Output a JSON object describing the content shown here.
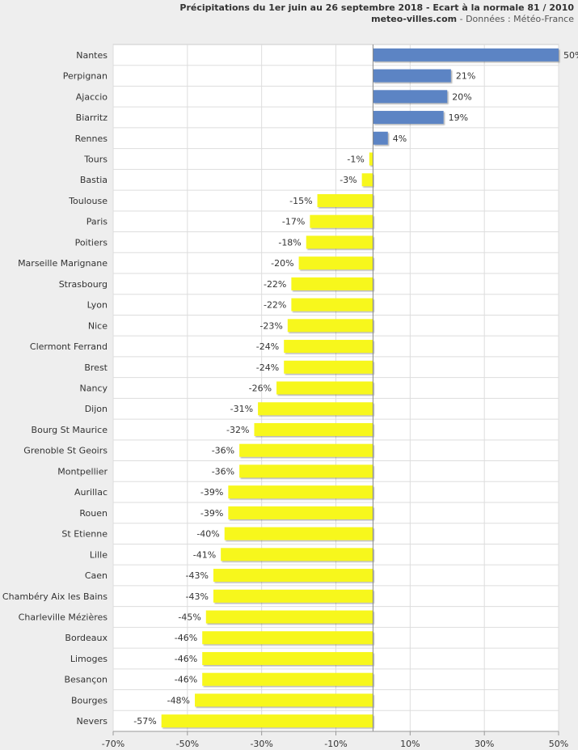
{
  "header": {
    "title": "Précipitations du 1er juin au 26 septembre 2018 - Ecart à la normale 81 / 2010",
    "site": "meteo-villes.com",
    "source": " - Données : Météo-France"
  },
  "colors": {
    "positive": "#5b84c4",
    "negative": "#f7f71c",
    "grid": "#dddddd",
    "plot_background": "#ffffff",
    "page_background": "#eeeeee"
  },
  "chart_data": {
    "type": "bar",
    "orientation": "horizontal",
    "title": "Précipitations du 1er juin au 26 septembre 2018 - Ecart à la normale 81 / 2010",
    "xlabel": "",
    "ylabel": "",
    "xlim": [
      -70,
      50
    ],
    "ticks": [
      "-70%",
      "-50%",
      "-30%",
      "-10%",
      "10%",
      "30%",
      "50%"
    ],
    "tick_values": [
      -70,
      -50,
      -30,
      -10,
      10,
      30,
      50
    ],
    "grid": true,
    "categories": [
      "Nantes",
      "Perpignan",
      "Ajaccio",
      "Biarritz",
      "Rennes",
      "Tours",
      "Bastia",
      "Toulouse",
      "Paris",
      "Poitiers",
      "Marseille Marignane",
      "Strasbourg",
      "Lyon",
      "Nice",
      "Clermont Ferrand",
      "Brest",
      "Nancy",
      "Dijon",
      "Bourg St Maurice",
      "Grenoble St Geoirs",
      "Montpellier",
      "Aurillac",
      "Rouen",
      "St Etienne",
      "Lille",
      "Caen",
      "Chambéry Aix les Bains",
      "Charleville Mézières",
      "Bordeaux",
      "Limoges",
      "Besançon",
      "Bourges",
      "Nevers"
    ],
    "values": [
      50,
      21,
      20,
      19,
      4,
      -1,
      -3,
      -15,
      -17,
      -18,
      -20,
      -22,
      -22,
      -23,
      -24,
      -24,
      -26,
      -31,
      -32,
      -36,
      -36,
      -39,
      -39,
      -40,
      -41,
      -43,
      -43,
      -45,
      -46,
      -46,
      -46,
      -48,
      -57
    ],
    "value_labels": [
      "50%",
      "21%",
      "20%",
      "19%",
      "4%",
      "-1%",
      "-3%",
      "-15%",
      "-17%",
      "-18%",
      "-20%",
      "-22%",
      "-22%",
      "-23%",
      "-24%",
      "-24%",
      "-26%",
      "-31%",
      "-32%",
      "-36%",
      "-36%",
      "-39%",
      "-39%",
      "-40%",
      "-41%",
      "-43%",
      "-43%",
      "-45%",
      "-46%",
      "-46%",
      "-46%",
      "-48%",
      "-57%"
    ]
  }
}
